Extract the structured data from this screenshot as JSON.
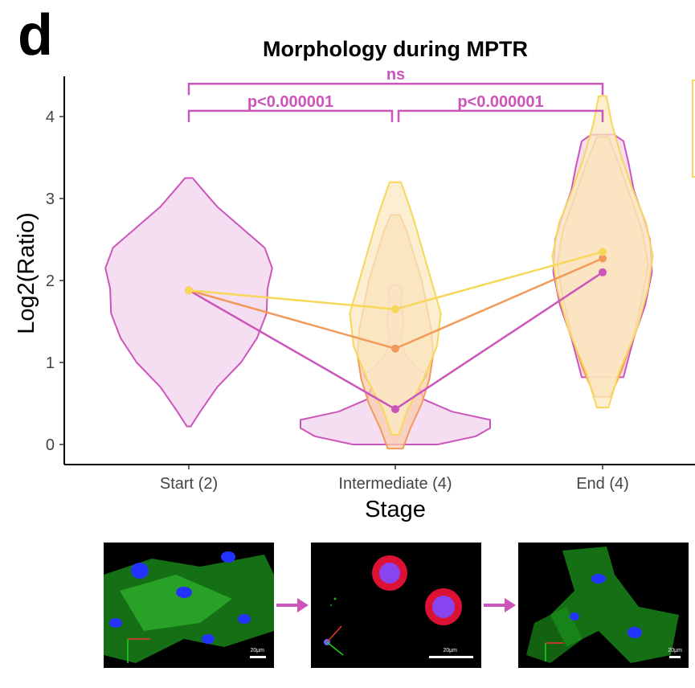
{
  "panel_label": "d",
  "chart_data": {
    "type": "violin",
    "title": "Morphology during MPTR",
    "xlabel": "Stage",
    "ylabel": "Log2(Ratio)",
    "categories": [
      "Start (2)",
      "Intermediate (4)",
      "End (4)"
    ],
    "yticks": [
      "0",
      "1",
      "2",
      "3",
      "4"
    ],
    "ylim": [
      -0.25,
      4.35
    ],
    "grid": false,
    "series": [
      {
        "name": "magenta",
        "color": "#cc55bb",
        "fill": "#f2d2ee",
        "medians": [
          1.88,
          0.43,
          2.1
        ],
        "violins": [
          {
            "category": 0,
            "profile": [
              [
                0.22,
                0.02
              ],
              [
                0.4,
                0.12
              ],
              [
                0.7,
                0.3
              ],
              [
                1.0,
                0.55
              ],
              [
                1.3,
                0.72
              ],
              [
                1.6,
                0.82
              ],
              [
                1.9,
                0.83
              ],
              [
                2.15,
                0.88
              ],
              [
                2.4,
                0.8
              ],
              [
                2.65,
                0.55
              ],
              [
                2.9,
                0.3
              ],
              [
                3.1,
                0.15
              ],
              [
                3.25,
                0.04
              ]
            ]
          },
          {
            "category": 1,
            "profile": [
              [
                0.0,
                0.45
              ],
              [
                0.1,
                0.85
              ],
              [
                0.2,
                1.0
              ],
              [
                0.3,
                1.0
              ],
              [
                0.4,
                0.6
              ],
              [
                0.55,
                0.3
              ],
              [
                0.7,
                0.25
              ],
              [
                0.85,
                0.33
              ],
              [
                0.95,
                0.22
              ],
              [
                1.1,
                0.1
              ],
              [
                1.3,
                0.06
              ],
              [
                1.5,
                0.09
              ],
              [
                1.7,
                0.06
              ],
              [
                1.9,
                0.07
              ],
              [
                1.95,
                0.02
              ]
            ]
          },
          {
            "category": 2,
            "profile": [
              [
                0.82,
                0.22
              ],
              [
                1.0,
                0.26
              ],
              [
                1.3,
                0.33
              ],
              [
                1.7,
                0.45
              ],
              [
                2.1,
                0.52
              ],
              [
                2.5,
                0.5
              ],
              [
                2.8,
                0.42
              ],
              [
                3.1,
                0.33
              ],
              [
                3.4,
                0.28
              ],
              [
                3.7,
                0.22
              ],
              [
                3.78,
                0.12
              ]
            ]
          }
        ]
      },
      {
        "name": "orange",
        "color": "#f29a5a",
        "fill": "#f9ccb0",
        "medians": [
          1.88,
          1.17,
          2.27
        ],
        "violins": [
          {
            "category": 1,
            "profile": [
              [
                -0.05,
                0.08
              ],
              [
                0.2,
                0.16
              ],
              [
                0.5,
                0.28
              ],
              [
                0.8,
                0.36
              ],
              [
                1.1,
                0.4
              ],
              [
                1.4,
                0.38
              ],
              [
                1.7,
                0.33
              ],
              [
                2.0,
                0.28
              ],
              [
                2.3,
                0.2
              ],
              [
                2.6,
                0.12
              ],
              [
                2.8,
                0.05
              ]
            ]
          },
          {
            "category": 2,
            "profile": [
              [
                0.58,
                0.08
              ],
              [
                0.9,
                0.2
              ],
              [
                1.3,
                0.32
              ],
              [
                1.8,
                0.42
              ],
              [
                2.2,
                0.48
              ],
              [
                2.6,
                0.42
              ],
              [
                3.0,
                0.3
              ],
              [
                3.4,
                0.18
              ],
              [
                3.75,
                0.06
              ]
            ]
          }
        ]
      },
      {
        "name": "yellow",
        "color": "#f7d75a",
        "fill": "#fbe9c2",
        "medians": [
          1.88,
          1.65,
          2.35
        ],
        "violins": [
          {
            "category": 1,
            "profile": [
              [
                0.12,
                0.04
              ],
              [
                0.4,
                0.12
              ],
              [
                0.8,
                0.3
              ],
              [
                1.2,
                0.44
              ],
              [
                1.6,
                0.48
              ],
              [
                2.0,
                0.38
              ],
              [
                2.4,
                0.28
              ],
              [
                2.8,
                0.18
              ],
              [
                3.2,
                0.06
              ]
            ]
          },
          {
            "category": 2,
            "profile": [
              [
                0.45,
                0.06
              ],
              [
                0.9,
                0.18
              ],
              [
                1.4,
                0.36
              ],
              [
                1.9,
                0.48
              ],
              [
                2.3,
                0.53
              ],
              [
                2.7,
                0.46
              ],
              [
                3.1,
                0.32
              ],
              [
                3.5,
                0.2
              ],
              [
                3.9,
                0.1
              ],
              [
                4.25,
                0.04
              ]
            ]
          }
        ]
      }
    ],
    "annotations": [
      {
        "label": "ns",
        "from": 0,
        "to": 2,
        "y": 4.4
      },
      {
        "label": "p<0.000001",
        "from": 0,
        "to": 1,
        "y": 4.07
      },
      {
        "label": "p<0.000001",
        "from": 1,
        "to": 2,
        "y": 4.07
      }
    ],
    "annotation_color": "#cc55bb",
    "legend_placement": "top-right (cropped)"
  },
  "images": [
    {
      "name": "start-stage-image",
      "scale_text": "20μm"
    },
    {
      "name": "intermediate-stage-image",
      "scale_text": "20μm"
    },
    {
      "name": "end-stage-image",
      "scale_text": "20μm"
    }
  ],
  "arrow_color": "#cc55bb"
}
